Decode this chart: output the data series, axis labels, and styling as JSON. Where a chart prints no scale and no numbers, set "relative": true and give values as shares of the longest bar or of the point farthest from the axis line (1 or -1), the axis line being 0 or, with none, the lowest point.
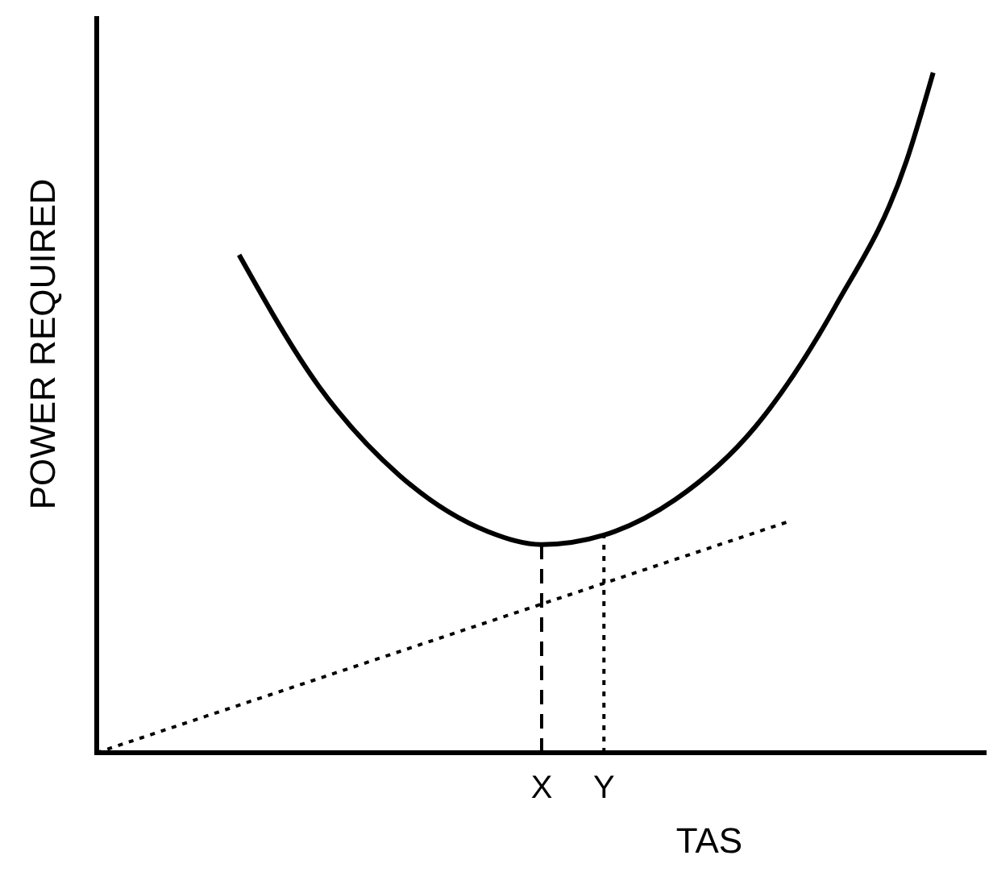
{
  "chart_data": {
    "type": "line",
    "relative": true,
    "xlabel": "TAS",
    "ylabel": "POWER REQUIRED",
    "grid": false,
    "categories": [
      null,
      null,
      null,
      null,
      null,
      null,
      null,
      null,
      null,
      null,
      null,
      null,
      null,
      null,
      null,
      null,
      null,
      null,
      null,
      null,
      null,
      null,
      null,
      null,
      null,
      null,
      null,
      null,
      null,
      null,
      null,
      null,
      null,
      null,
      null,
      null,
      null,
      null,
      null,
      null,
      null,
      null,
      null,
      null,
      null,
      null,
      null,
      null,
      null,
      null,
      "X",
      null,
      null,
      null,
      null,
      null,
      null,
      "Y",
      null,
      null,
      null,
      null,
      null,
      null,
      null,
      null,
      null,
      null,
      null,
      null,
      null,
      null,
      null,
      null,
      null,
      null,
      null,
      null,
      null,
      null,
      null,
      null,
      null,
      null,
      null,
      null,
      null,
      null,
      null,
      null,
      null,
      null,
      null,
      null,
      null,
      null,
      null,
      null,
      null,
      null,
      null
    ],
    "series": [
      {
        "color": "#000000",
        "line_style": "solid",
        "values": [
          null,
          null,
          null,
          null,
          null,
          null,
          null,
          null,
          null,
          null,
          null,
          null,
          null,
          null,
          null,
          null,
          0.732,
          null,
          null,
          null,
          null,
          null,
          null,
          null,
          null,
          0.538,
          null,
          null,
          null,
          null,
          null,
          null,
          null,
          null,
          0.408,
          null,
          null,
          null,
          null,
          null,
          null,
          null,
          null,
          null,
          0.325,
          null,
          null,
          null,
          null,
          null,
          0.306,
          null,
          null,
          null,
          null,
          null,
          null,
          0.32,
          null,
          null,
          null,
          null,
          null,
          null,
          null,
          0.372,
          null,
          null,
          null,
          null,
          null,
          null,
          null,
          null,
          0.479,
          null,
          null,
          null,
          null,
          null,
          null,
          null,
          null,
          0.656,
          null,
          null,
          null,
          null,
          null,
          null,
          null,
          0.87,
          null,
          null,
          1.0,
          null,
          null,
          null,
          null,
          null,
          null
        ]
      },
      {
        "color": "#000000",
        "line_style": "dotted",
        "values": [
          0,
          null,
          null,
          null,
          null,
          null,
          null,
          null,
          null,
          null,
          null,
          null,
          null,
          null,
          null,
          null,
          null,
          null,
          null,
          null,
          null,
          null,
          null,
          null,
          null,
          null,
          null,
          null,
          null,
          null,
          null,
          null,
          null,
          null,
          null,
          null,
          null,
          null,
          null,
          null,
          null,
          null,
          null,
          null,
          null,
          null,
          null,
          null,
          null,
          null,
          null,
          null,
          null,
          null,
          null,
          null,
          null,
          null,
          null,
          null,
          null,
          null,
          null,
          null,
          null,
          null,
          null,
          null,
          null,
          null,
          null,
          null,
          null,
          null,
          null,
          null,
          null,
          null,
          0.341,
          null,
          null,
          null,
          null,
          null,
          null,
          null,
          null,
          null,
          null,
          null,
          null,
          null,
          null,
          null,
          null,
          null,
          null,
          null,
          null,
          null,
          null
        ]
      }
    ],
    "ref_lines": [
      {
        "axis": "x",
        "value": "X",
        "line_style": "dashed",
        "color": "#000000"
      },
      {
        "axis": "x",
        "value": "Y",
        "line_style": "dotted",
        "color": "#000000"
      }
    ]
  }
}
